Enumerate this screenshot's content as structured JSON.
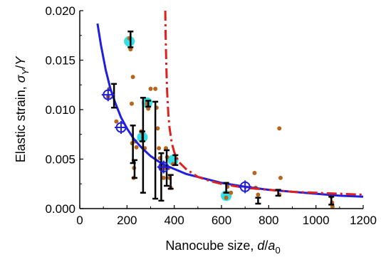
{
  "chart_data": {
    "type": "scatter",
    "title": "",
    "xlabel_parts": {
      "text": "Nanocube size, ",
      "var": "d",
      "slash": "/",
      "var2": "a",
      "sub": "0"
    },
    "ylabel_parts": {
      "text": "Elastic strain, ",
      "var": "σ",
      "sub": "Y",
      "slash": "/",
      "var2": "Y"
    },
    "xlim": [
      0,
      1200
    ],
    "ylim": [
      0,
      0.02
    ],
    "x_ticks": [
      "0",
      "200",
      "400",
      "600",
      "800",
      "1000",
      "1200"
    ],
    "y_ticks": [
      "0.000",
      "0.005",
      "0.010",
      "0.015",
      "0.020"
    ],
    "x_tick_values": [
      0,
      200,
      400,
      600,
      800,
      1000,
      1200
    ],
    "y_tick_values": [
      0,
      0.005,
      0.01,
      0.015,
      0.02
    ],
    "grid": false,
    "legend": "none",
    "colors": {
      "raw_points": "#b8651f",
      "highlight": "#34e0e6",
      "errorbar": "#000000",
      "blue_fit": "#1f1fe0",
      "red_fit": "#e01f1f"
    },
    "series": [
      {
        "kind": "scatter",
        "points": [
          [
            120,
            0.0113
          ],
          [
            125,
            0.0121
          ],
          [
            155,
            0.0088
          ],
          [
            210,
            0.0172
          ],
          [
            215,
            0.0161
          ],
          [
            225,
            0.0133
          ],
          [
            220,
            0.0106
          ],
          [
            222,
            0.0066
          ],
          [
            235,
            0.0068
          ],
          [
            240,
            0.0062
          ],
          [
            230,
            0.0041
          ],
          [
            228,
            0.0031
          ],
          [
            260,
            0.0078
          ],
          [
            270,
            0.0061
          ],
          [
            275,
            0.0061
          ],
          [
            285,
            0.0106
          ],
          [
            290,
            0.0101
          ],
          [
            300,
            0.0121
          ],
          [
            320,
            0.0121
          ],
          [
            325,
            0.0102
          ],
          [
            330,
            0.0081
          ],
          [
            335,
            0.0061
          ],
          [
            340,
            0.0051
          ],
          [
            345,
            0.0042
          ],
          [
            350,
            0.0039
          ],
          [
            355,
            0.0031
          ],
          [
            360,
            0.0041
          ],
          [
            365,
            0.0061
          ],
          [
            370,
            0.0052
          ],
          [
            375,
            0.0041
          ],
          [
            380,
            0.0031
          ],
          [
            385,
            0.0021
          ],
          [
            395,
            0.0045
          ],
          [
            620,
            0.0011
          ],
          [
            625,
            0.0022
          ],
          [
            640,
            0.0016
          ],
          [
            740,
            0.0036
          ],
          [
            745,
            0.0021
          ],
          [
            755,
            0.0014
          ],
          [
            845,
            0.0081
          ],
          [
            850,
            0.0031
          ],
          [
            845,
            0.0014
          ],
          [
            1065,
            0.0012
          ],
          [
            1068,
            0.0006
          ],
          [
            1070,
            0.0002
          ]
        ]
      },
      {
        "kind": "highlight",
        "points": [
          [
            210,
            0.0169
          ],
          [
            265,
            0.0072
          ],
          [
            285,
            0.0107
          ],
          [
            395,
            0.0049
          ],
          [
            620,
            0.0013
          ]
        ]
      },
      {
        "kind": "errorbar",
        "bars": [
          [
            145,
            0.0114,
            0.0012
          ],
          [
            215,
            0.0171,
            0.0008
          ],
          [
            225,
            0.0065,
            0.0019
          ],
          [
            232,
            0.004,
            0.0009
          ],
          [
            265,
            0.0073,
            0.0005
          ],
          [
            290,
            0.0106,
            0.0003
          ],
          [
            268,
            0.0064,
            0.0048
          ],
          [
            320,
            0.0059,
            0.0049
          ],
          [
            345,
            0.0032,
            0.0024
          ],
          [
            368,
            0.0041,
            0.0018
          ],
          [
            385,
            0.0027,
            0.0007
          ],
          [
            405,
            0.0049,
            0.0005
          ],
          [
            620,
            0.0021,
            0.0005
          ],
          [
            755,
            0.0008,
            0.0003
          ],
          [
            840,
            0.0016,
            0.0003
          ],
          [
            1065,
            0.0008,
            0.0004
          ]
        ]
      },
      {
        "kind": "crosshair",
        "points": [
          [
            120,
            0.0115
          ],
          [
            175,
            0.0082
          ],
          [
            355,
            0.0042
          ],
          [
            700,
            0.0022
          ]
        ]
      },
      {
        "kind": "line",
        "style": "solid",
        "color_key": "blue_fit",
        "x": [
          75,
          90,
          110,
          130,
          150,
          175,
          200,
          230,
          260,
          300,
          350,
          400,
          450,
          500,
          600,
          700,
          800,
          900,
          1000,
          1100,
          1200
        ],
        "y": [
          0.0187,
          0.0165,
          0.014,
          0.0121,
          0.0107,
          0.0092,
          0.0081,
          0.007,
          0.0062,
          0.0053,
          0.0045,
          0.004,
          0.0035,
          0.0032,
          0.0026,
          0.0022,
          0.0019,
          0.0017,
          0.0015,
          0.0013,
          0.0012
        ]
      },
      {
        "kind": "line",
        "style": "dashdot",
        "color_key": "red_fit",
        "x": [
          362,
          364,
          367,
          370,
          375,
          380,
          390,
          400,
          420,
          450,
          500,
          550,
          600,
          700,
          800,
          900,
          1000,
          1100,
          1200
        ],
        "y": [
          0.02,
          0.0172,
          0.014,
          0.0118,
          0.0095,
          0.0082,
          0.0066,
          0.0057,
          0.0047,
          0.004,
          0.0032,
          0.0028,
          0.0025,
          0.0021,
          0.0019,
          0.0017,
          0.0016,
          0.0015,
          0.0014
        ]
      }
    ]
  }
}
